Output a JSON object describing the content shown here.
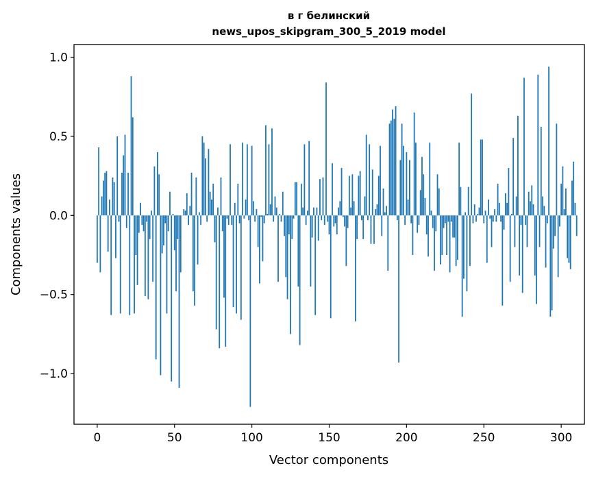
{
  "chart_data": {
    "type": "bar",
    "title": [
      "в г белинский",
      "news_upos_skipgram_300_5_2019 model"
    ],
    "xlabel": "Vector components",
    "ylabel": "Components values",
    "xlim": [
      -15,
      315
    ],
    "ylim": [
      -1.32,
      1.08
    ],
    "xticks": [
      0,
      50,
      100,
      150,
      200,
      250,
      300
    ],
    "yticks": [
      1.0,
      0.5,
      0.0,
      -0.5,
      -1.0
    ],
    "ytick_labels": [
      "1.0",
      "0.5",
      "0.0",
      "−0.5",
      "−1.0"
    ],
    "bar_color": "#1f77b4",
    "grid": false,
    "legend": "none",
    "values": [
      -0.3,
      0.43,
      -0.36,
      0.12,
      0.22,
      0.27,
      0.28,
      -0.23,
      0.1,
      -0.63,
      0.24,
      0.21,
      -0.27,
      0.5,
      -0.04,
      -0.62,
      0.27,
      0.38,
      0.51,
      -0.08,
      0.27,
      -0.63,
      0.88,
      0.62,
      -0.62,
      -0.25,
      -0.44,
      -0.11,
      0.08,
      -0.06,
      -0.1,
      -0.51,
      -0.04,
      -0.53,
      -0.15,
      0.03,
      -0.42,
      0.31,
      -0.91,
      0.4,
      0.26,
      -1.01,
      -0.24,
      -0.19,
      -0.05,
      -0.62,
      -0.1,
      0.15,
      -1.05,
      0.01,
      -0.22,
      -0.48,
      -0.15,
      -1.09,
      -0.36,
      0.0,
      0.04,
      0.03,
      0.14,
      -0.06,
      0.06,
      0.27,
      -0.48,
      -0.57,
      0.24,
      -0.31,
      0.02,
      -0.06,
      0.5,
      0.46,
      0.36,
      -0.04,
      0.42,
      0.15,
      0.1,
      0.2,
      -0.17,
      -0.72,
      0.05,
      -0.84,
      0.24,
      -0.1,
      -0.52,
      -0.83,
      -0.02,
      -0.06,
      0.45,
      -0.06,
      -0.58,
      0.08,
      -0.62,
      0.2,
      -0.05,
      -0.66,
      0.46,
      -0.02,
      0.1,
      0.45,
      -0.03,
      -1.21,
      0.44,
      0.09,
      -0.04,
      0.04,
      -0.2,
      -0.43,
      -0.01,
      -0.29,
      -0.05,
      0.57,
      0.01,
      0.45,
      0.07,
      0.55,
      -0.04,
      0.12,
      0.05,
      -0.42,
      0.01,
      -0.04,
      0.15,
      -0.13,
      -0.39,
      -0.53,
      -0.12,
      -0.75,
      -0.15,
      -0.02,
      0.21,
      0.21,
      -0.45,
      -0.82,
      0.2,
      0.05,
      0.45,
      -0.06,
      0.03,
      0.47,
      -0.45,
      -0.14,
      0.05,
      -0.63,
      0.05,
      -0.16,
      0.23,
      -0.03,
      0.24,
      -0.06,
      0.84,
      -0.04,
      -0.12,
      -0.65,
      0.33,
      -0.07,
      -0.05,
      -0.12,
      0.05,
      0.09,
      0.3,
      -0.01,
      -0.07,
      -0.32,
      -0.08,
      0.25,
      0.05,
      0.26,
      0.09,
      -0.67,
      -0.15,
      0.25,
      0.28,
      -0.03,
      -0.15,
      0.12,
      0.51,
      -0.03,
      0.45,
      -0.18,
      0.29,
      -0.18,
      0.04,
      0.07,
      0.25,
      0.44,
      -0.13,
      0.17,
      0.02,
      0.06,
      -0.35,
      0.58,
      0.6,
      0.67,
      0.61,
      0.69,
      -0.03,
      -0.93,
      0.35,
      0.58,
      0.44,
      -0.06,
      0.4,
      0.1,
      0.35,
      -0.05,
      -0.25,
      0.65,
      0.46,
      -0.11,
      -0.06,
      0.16,
      0.37,
      0.26,
      0.11,
      -0.12,
      -0.26,
      0.46,
      0.03,
      -0.08,
      -0.35,
      -0.1,
      0.26,
      0.17,
      -0.31,
      -0.25,
      -0.08,
      -0.05,
      -0.25,
      -0.04,
      -0.36,
      -0.04,
      -0.14,
      -0.14,
      -0.32,
      -0.28,
      0.46,
      0.18,
      -0.64,
      -0.4,
      0.02,
      -0.48,
      0.18,
      -0.32,
      0.77,
      -0.05,
      0.07,
      -0.04,
      0.01,
      0.05,
      0.48,
      0.48,
      -0.05,
      0.03,
      -0.3,
      0.1,
      -0.02,
      -0.2,
      -0.04,
      0.04,
      -0.04,
      0.2,
      0.08,
      -0.04,
      -0.57,
      -0.09,
      0.14,
      0.08,
      0.3,
      -0.42,
      0.01,
      0.49,
      -0.2,
      0.12,
      0.63,
      -0.38,
      -0.06,
      -0.49,
      0.87,
      -0.06,
      -0.2,
      0.15,
      0.09,
      0.19,
      0.07,
      -0.38,
      -0.56,
      0.89,
      -0.2,
      0.56,
      0.12,
      0.06,
      -0.33,
      -0.05,
      0.94,
      -0.64,
      -0.6,
      -0.21,
      -0.13,
      0.58,
      -0.39,
      -0.07,
      0.2,
      0.31,
      0.04,
      0.17,
      -0.27,
      -0.3,
      -0.34,
      0.22,
      0.34,
      0.08,
      -0.13
    ],
    "colors": {
      "bars": "#1f77b4",
      "axes": "#000000",
      "background": "#ffffff"
    }
  }
}
